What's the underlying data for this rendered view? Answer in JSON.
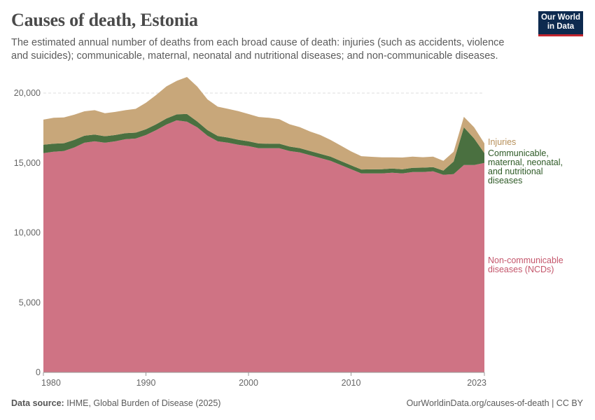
{
  "header": {
    "title": "Causes of death, Estonia",
    "subtitle": "The estimated annual number of deaths from each broad cause of death: injuries (such as accidents, violence and suicides); communicable, maternal, neonatal and nutritional diseases; and non-communicable diseases.",
    "logo_line1": "Our World",
    "logo_line2": "in Data"
  },
  "footer": {
    "source_label": "Data source:",
    "source_text": "IHME, Global Burden of Disease (2025)",
    "url_text": "OurWorldinData.org/causes-of-death | CC BY"
  },
  "chart_data": {
    "type": "area",
    "stacked": true,
    "x": [
      1980,
      1981,
      1982,
      1983,
      1984,
      1985,
      1986,
      1987,
      1988,
      1989,
      1990,
      1991,
      1992,
      1993,
      1994,
      1995,
      1996,
      1997,
      1998,
      1999,
      2000,
      2001,
      2002,
      2003,
      2004,
      2005,
      2006,
      2007,
      2008,
      2009,
      2010,
      2011,
      2012,
      2013,
      2014,
      2015,
      2016,
      2017,
      2018,
      2019,
      2020,
      2021,
      2022,
      2023
    ],
    "series": [
      {
        "name": "Non-communicable diseases (NCDs)",
        "label_lines": [
          "Non-communicable",
          "diseases (NCDs)"
        ],
        "color": "#cf7384",
        "label_color": "#c4566b",
        "values": [
          15700,
          15800,
          15850,
          16100,
          16450,
          16550,
          16450,
          16550,
          16700,
          16750,
          17000,
          17350,
          17750,
          18050,
          17950,
          17550,
          16950,
          16550,
          16450,
          16300,
          16200,
          16050,
          16050,
          16050,
          15850,
          15750,
          15550,
          15350,
          15150,
          14850,
          14550,
          14250,
          14250,
          14250,
          14300,
          14250,
          14350,
          14350,
          14400,
          14150,
          14200,
          14850,
          14850,
          15000
        ]
      },
      {
        "name": "Communicable, maternal, neonatal, and nutritional diseases",
        "label_lines": [
          "Communicable,",
          "maternal, neonatal,",
          "and nutritional",
          "diseases"
        ],
        "color": "#4a7040",
        "label_color": "#2e5a26",
        "values": [
          600,
          580,
          560,
          550,
          500,
          480,
          460,
          450,
          430,
          420,
          410,
          420,
          430,
          430,
          550,
          420,
          400,
          380,
          370,
          360,
          350,
          340,
          330,
          330,
          320,
          310,
          300,
          300,
          300,
          290,
          280,
          280,
          290,
          300,
          300,
          290,
          300,
          310,
          300,
          300,
          900,
          2700,
          1900,
          700
        ]
      },
      {
        "name": "Injuries",
        "label_lines": [
          "Injuries"
        ],
        "color": "#c8a77a",
        "label_color": "#b7905a",
        "values": [
          1800,
          1850,
          1850,
          1800,
          1750,
          1750,
          1650,
          1650,
          1650,
          1700,
          1900,
          2100,
          2300,
          2400,
          2650,
          2500,
          2200,
          2100,
          2050,
          2050,
          1950,
          1900,
          1850,
          1750,
          1600,
          1500,
          1400,
          1350,
          1200,
          1100,
          1000,
          950,
          900,
          850,
          800,
          850,
          800,
          750,
          750,
          700,
          700,
          750,
          800,
          700
        ]
      }
    ],
    "y_ticks": [
      "0",
      "5,000",
      "10,000",
      "15,000",
      "20,000"
    ],
    "y_tick_values": [
      0,
      5000,
      10000,
      15000,
      20000
    ],
    "x_ticks": [
      "1980",
      "1990",
      "2000",
      "2010",
      "2023"
    ],
    "x_tick_values": [
      1980,
      1990,
      2000,
      2010,
      2023
    ],
    "ylim": [
      0,
      20000
    ],
    "xlim": [
      1980,
      2023
    ],
    "grid": true,
    "legend": "right"
  }
}
